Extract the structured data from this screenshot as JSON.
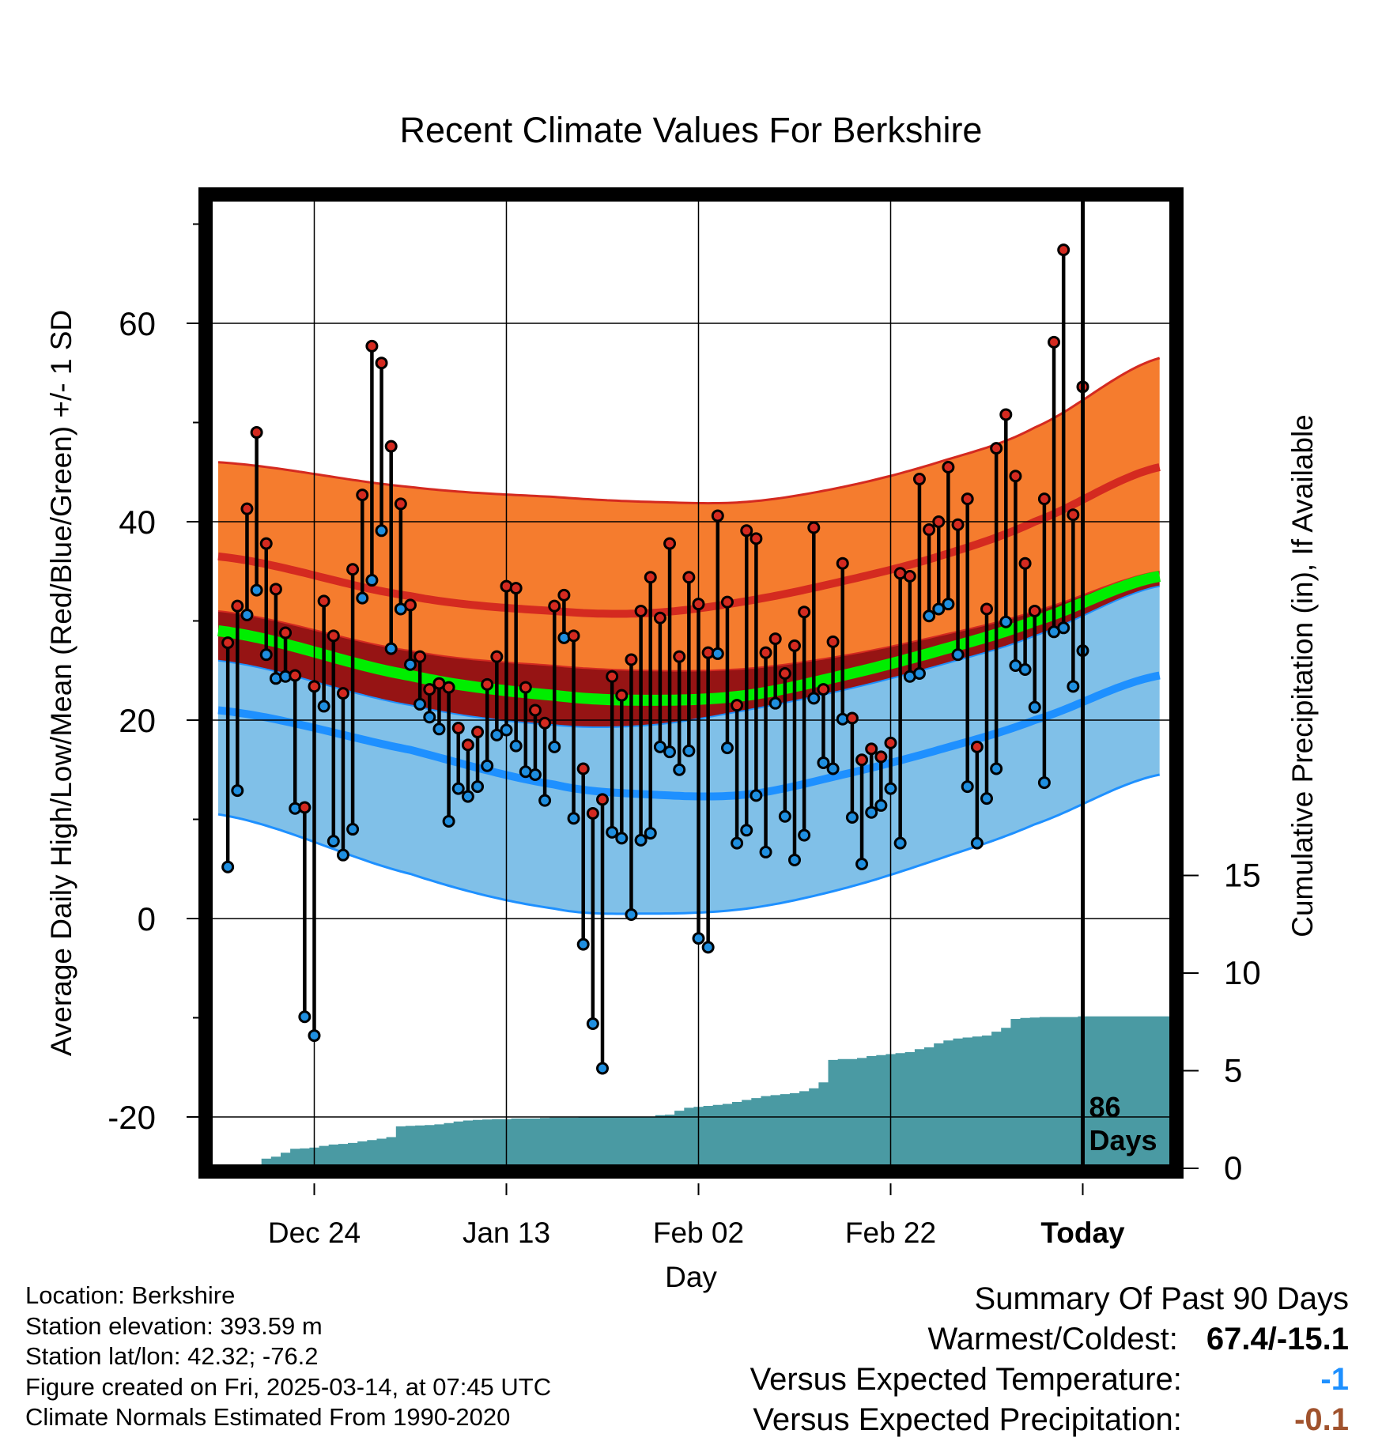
{
  "chart_data": {
    "type": "range-dot",
    "title": "Recent Climate Values For Berkshire",
    "xlabel": "Day",
    "ylabel": "Average Daily High/Low/Mean (Red/Blue/Green) +/- 1 SD",
    "y2label": "Cumulative Precipitation (in), If Available",
    "ylim": [
      -25,
      73
    ],
    "y_ticks": [
      "-20",
      "0",
      "20",
      "40",
      "60"
    ],
    "y2_ticks": [
      "0",
      "5",
      "10",
      "15"
    ],
    "y2_range_in": [
      0,
      15
    ],
    "x_range_days": [
      -90,
      8
    ],
    "x_ticks": [
      {
        "label": "Dec 24",
        "day": -80,
        "bold": false
      },
      {
        "label": "Jan 13",
        "day": -60,
        "bold": false
      },
      {
        "label": "Feb 02",
        "day": -40,
        "bold": false
      },
      {
        "label": "Feb 22",
        "day": -20,
        "bold": false
      },
      {
        "label": "Today",
        "day": 0,
        "bold": true
      }
    ],
    "today_marker": {
      "line1": "86",
      "line2": "Days"
    },
    "bands": {
      "day": [
        -90,
        -70,
        -55,
        -45,
        -35,
        -25,
        -15,
        -5,
        8
      ],
      "high_plus_sd": [
        46.0,
        43.5,
        42.5,
        42.0,
        42.0,
        43.5,
        46.0,
        49.5,
        56.5
      ],
      "high_mean": [
        36.5,
        32.5,
        31.0,
        30.8,
        32.0,
        34.0,
        36.5,
        40.0,
        45.5
      ],
      "high_minus_sd": [
        31.0,
        27.0,
        25.5,
        25.0,
        25.2,
        26.5,
        28.5,
        31.0,
        35.0
      ],
      "mean_line": [
        29.0,
        24.5,
        22.5,
        22.0,
        22.5,
        24.5,
        27.0,
        30.0,
        34.5
      ],
      "low_plus_sd": [
        26.0,
        21.5,
        19.5,
        19.5,
        21.0,
        23.0,
        25.5,
        28.5,
        33.5
      ],
      "low_mean": [
        21.0,
        17.0,
        13.5,
        12.5,
        12.5,
        14.5,
        17.0,
        20.0,
        24.5
      ],
      "low_minus_sd": [
        10.5,
        4.5,
        1.0,
        0.5,
        1.0,
        3.0,
        6.0,
        9.5,
        14.5
      ]
    },
    "series": [
      {
        "name": "High",
        "color": "#d42a20",
        "values": [
          27.8,
          31.5,
          41.3,
          49.0,
          37.8,
          33.2,
          28.8,
          24.5,
          11.2,
          23.4,
          32.0,
          28.5,
          22.7,
          35.2,
          42.7,
          57.7,
          56.0,
          47.6,
          41.8,
          31.6,
          26.4,
          23.1,
          23.7,
          23.3,
          19.2,
          17.5,
          18.8,
          23.6,
          26.4,
          33.5,
          33.3,
          23.3,
          21.0,
          19.7,
          31.5,
          32.6,
          28.5,
          15.1,
          10.6,
          12.0,
          24.4,
          22.5,
          26.1,
          31.0,
          34.4,
          30.3,
          37.8,
          26.4,
          34.4,
          31.7,
          26.8,
          40.6,
          31.9,
          21.5,
          39.1,
          38.3,
          26.8,
          28.2,
          24.7,
          27.5,
          30.9,
          39.4,
          23.1,
          27.9,
          35.8,
          20.2,
          16.0,
          17.1,
          16.3,
          17.7,
          34.8,
          34.5,
          44.3,
          39.2,
          40.0,
          45.5,
          39.7,
          42.3,
          17.3,
          31.2,
          47.4,
          50.8,
          44.6,
          35.8,
          31.0,
          42.3,
          58.1,
          67.4,
          40.7,
          53.6
        ]
      },
      {
        "name": "Low",
        "color": "#1f8fe0",
        "values": [
          5.2,
          12.9,
          30.6,
          33.1,
          26.6,
          24.2,
          24.4,
          11.1,
          -9.9,
          -11.8,
          21.4,
          7.8,
          6.4,
          9.0,
          32.3,
          34.1,
          39.1,
          27.2,
          31.2,
          25.6,
          21.6,
          20.3,
          19.1,
          9.8,
          13.1,
          12.3,
          13.3,
          15.4,
          18.5,
          19.0,
          17.4,
          14.8,
          14.5,
          11.9,
          17.3,
          28.3,
          10.1,
          -2.6,
          -10.6,
          -15.1,
          8.7,
          8.1,
          0.4,
          7.9,
          8.6,
          17.3,
          16.8,
          15.0,
          16.9,
          -2.0,
          -2.9,
          26.7,
          17.2,
          7.6,
          8.9,
          12.4,
          6.7,
          21.7,
          10.3,
          5.9,
          8.4,
          22.2,
          15.7,
          15.1,
          20.1,
          10.2,
          5.5,
          10.7,
          11.4,
          13.1,
          7.6,
          24.4,
          24.7,
          30.5,
          31.2,
          31.7,
          26.6,
          13.3,
          7.6,
          12.1,
          15.1,
          29.9,
          25.5,
          25.1,
          21.3,
          13.7,
          28.9,
          29.3,
          23.4,
          27.0
        ]
      }
    ],
    "cumulative_precipitation_in": [
      0,
      0,
      0,
      0.2,
      0.5,
      0.6,
      0.8,
      1.0,
      1.02,
      1.06,
      1.15,
      1.22,
      1.25,
      1.3,
      1.38,
      1.45,
      1.52,
      1.6,
      2.15,
      2.18,
      2.2,
      2.22,
      2.25,
      2.32,
      2.4,
      2.45,
      2.48,
      2.5,
      2.52,
      2.52,
      2.55,
      2.55,
      2.55,
      2.58,
      2.6,
      2.6,
      2.6,
      2.62,
      2.62,
      2.62,
      2.62,
      2.62,
      2.62,
      2.62,
      2.65,
      2.72,
      2.75,
      2.95,
      3.1,
      3.15,
      3.2,
      3.25,
      3.3,
      3.4,
      3.5,
      3.6,
      3.7,
      3.75,
      3.8,
      3.85,
      3.95,
      4.1,
      4.4,
      5.55,
      5.6,
      5.6,
      5.65,
      5.75,
      5.8,
      5.85,
      5.9,
      5.95,
      6.1,
      6.2,
      6.4,
      6.55,
      6.65,
      6.7,
      6.75,
      6.8,
      7.0,
      7.2,
      7.65,
      7.7,
      7.72,
      7.75,
      7.75,
      7.75,
      7.75,
      7.78
    ]
  },
  "footer": {
    "location": "Location: Berkshire",
    "elevation": "Station elevation: 393.59 m",
    "latlon": "Station lat/lon: 42.32; -76.2",
    "created": "Figure created on Fri, 2025-03-14, at 07:45 UTC",
    "normals": "Climate Normals Estimated From 1990-2020"
  },
  "summary": {
    "title": "Summary Of Past 90 Days",
    "warm_cold_label": "Warmest/Coldest:",
    "warm_cold_value": "67.4/-15.1",
    "temp_label": "Versus Expected Temperature:",
    "temp_value": "-1",
    "temp_color": "#1e90ff",
    "precip_label": "Versus Expected Precipitation:",
    "precip_value": "-0.1",
    "precip_color": "#a0522d"
  },
  "colors": {
    "high_sd_fill": "#f57c2e",
    "high_edge": "#d42a20",
    "overlap_fill": "#961414",
    "low_sd_fill": "#80c0e8",
    "low_edge": "#1e90ff",
    "mean_line": "#00ee00",
    "precip_fill": "#4a9aa3"
  }
}
